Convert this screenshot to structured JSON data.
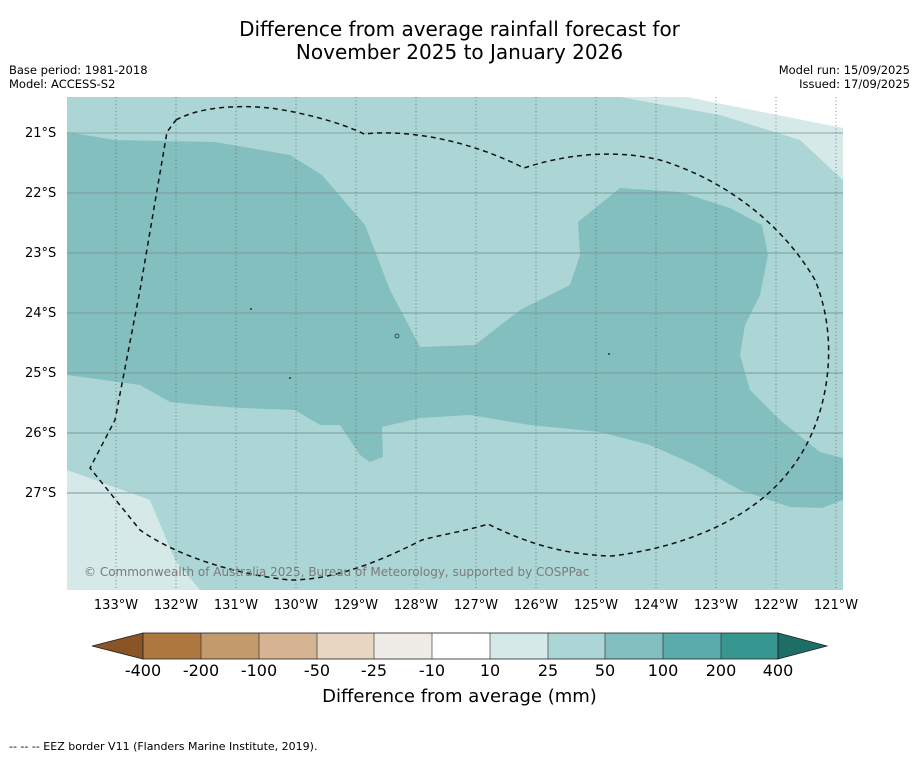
{
  "title": {
    "line1": "Difference from average rainfall forecast for",
    "line2": "November 2025 to January 2026"
  },
  "meta_left": {
    "base_period": "Base period: 1981-2018",
    "model": "Model: ACCESS-S2"
  },
  "meta_right": {
    "model_run": "Model run: 15/09/2025",
    "issued": "Issued: 17/09/2025"
  },
  "map": {
    "latitude_labels": [
      "21°S",
      "22°S",
      "23°S",
      "24°S",
      "25°S",
      "26°S",
      "27°S"
    ],
    "longitude_labels": [
      "133°W",
      "132°W",
      "131°W",
      "130°W",
      "129°W",
      "128°W",
      "127°W",
      "126°W",
      "125°W",
      "124°W",
      "123°W",
      "122°W",
      "121°W"
    ],
    "copyright": "© Commonwealth of Australia 2025, Bureau of Meteorology, supported by COSPPac",
    "colors": {
      "band_10_25": "#d5e9e8",
      "band_25_50": "#acd6d5",
      "band_50_100": "#84bfbf"
    }
  },
  "colorbar": {
    "tick_labels": [
      "-400",
      "-200",
      "-100",
      "-50",
      "-25",
      "-10",
      "10",
      "25",
      "50",
      "100",
      "200",
      "400"
    ],
    "colors": [
      "#8a5426",
      "#ad7941",
      "#c39a6c",
      "#d4b493",
      "#e7d6c2",
      "#efebe6",
      "#ffffff",
      "#d5e9e8",
      "#acd6d5",
      "#84bfbf",
      "#5aabab",
      "#35978f",
      "#1c6e66"
    ],
    "title": "Difference from average (mm)"
  },
  "footnote": "--  --  -- EEZ border V11 (Flanders Marine Institute, 2019)."
}
